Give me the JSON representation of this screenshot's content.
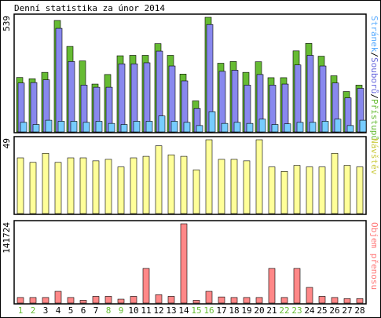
{
  "chart_data": {
    "title": "Denní statistika za únor 2014",
    "days": [
      "1",
      "2",
      "3",
      "4",
      "5",
      "6",
      "7",
      "8",
      "9",
      "10",
      "11",
      "12",
      "13",
      "14",
      "15",
      "16",
      "17",
      "18",
      "19",
      "20",
      "21",
      "22",
      "23",
      "24",
      "25",
      "26",
      "27",
      "28"
    ],
    "weekend_days": [
      "1",
      "2",
      "8",
      "9",
      "15",
      "16",
      "22",
      "23"
    ],
    "panels": [
      {
        "type": "bar",
        "max_label": "539",
        "ymax": 539,
        "legend": [
          "Stránek",
          "Souborů",
          "Přístupů"
        ],
        "series": [
          {
            "name": "Přístupů",
            "color": "#66bb33",
            "values": [
              256,
              250,
              280,
              524,
              402,
              334,
              225,
              270,
              358,
              360,
              360,
              415,
              360,
              272,
              146,
              539,
              323,
              331,
              280,
              330,
              255,
              255,
              381,
              416,
              356,
              264,
              190,
              220
            ]
          },
          {
            "name": "Souborů",
            "color": "#8888ee",
            "values": [
              230,
              232,
              245,
              487,
              331,
              220,
              210,
              210,
              320,
              320,
              325,
              380,
              310,
              240,
              110,
              505,
              285,
              290,
              220,
              270,
              220,
              225,
              315,
              360,
              310,
              230,
              160,
              205
            ]
          },
          {
            "name": "Stránek",
            "color": "#77ccff",
            "values": [
              45,
              35,
              55,
              50,
              50,
              45,
              50,
              40,
              35,
              50,
              50,
              75,
              50,
              45,
              30,
              95,
              40,
              45,
              40,
              60,
              35,
              38,
              45,
              45,
              50,
              60,
              30,
              55
            ]
          }
        ]
      },
      {
        "type": "bar",
        "max_label": "49",
        "ymax": 49,
        "legend": [
          "Návštěv"
        ],
        "series": [
          {
            "name": "Návštěv",
            "color": "#ffff99",
            "values": [
              37,
              34,
              40,
              34,
              37,
              37,
              35,
              36,
              31,
              37,
              38,
              45,
              39,
              38,
              29,
              49,
              36,
              36,
              35,
              49,
              31,
              28,
              32,
              31,
              31,
              40,
              32,
              31
            ]
          }
        ]
      },
      {
        "type": "bar",
        "max_label": "141724",
        "ymax": 141724,
        "legend": [
          "Objem přenosu"
        ],
        "series": [
          {
            "name": "Objem přenosu",
            "color": "#ff8888",
            "values": [
              10000,
              10000,
              10000,
              21000,
              10000,
              5000,
              12000,
              12000,
              7000,
              12000,
              62000,
              15000,
              12000,
              141724,
              5000,
              21000,
              11000,
              10000,
              10000,
              10000,
              62000,
              10000,
              62000,
              28000,
              12000,
              10000,
              8000,
              8000
            ]
          }
        ]
      }
    ]
  }
}
